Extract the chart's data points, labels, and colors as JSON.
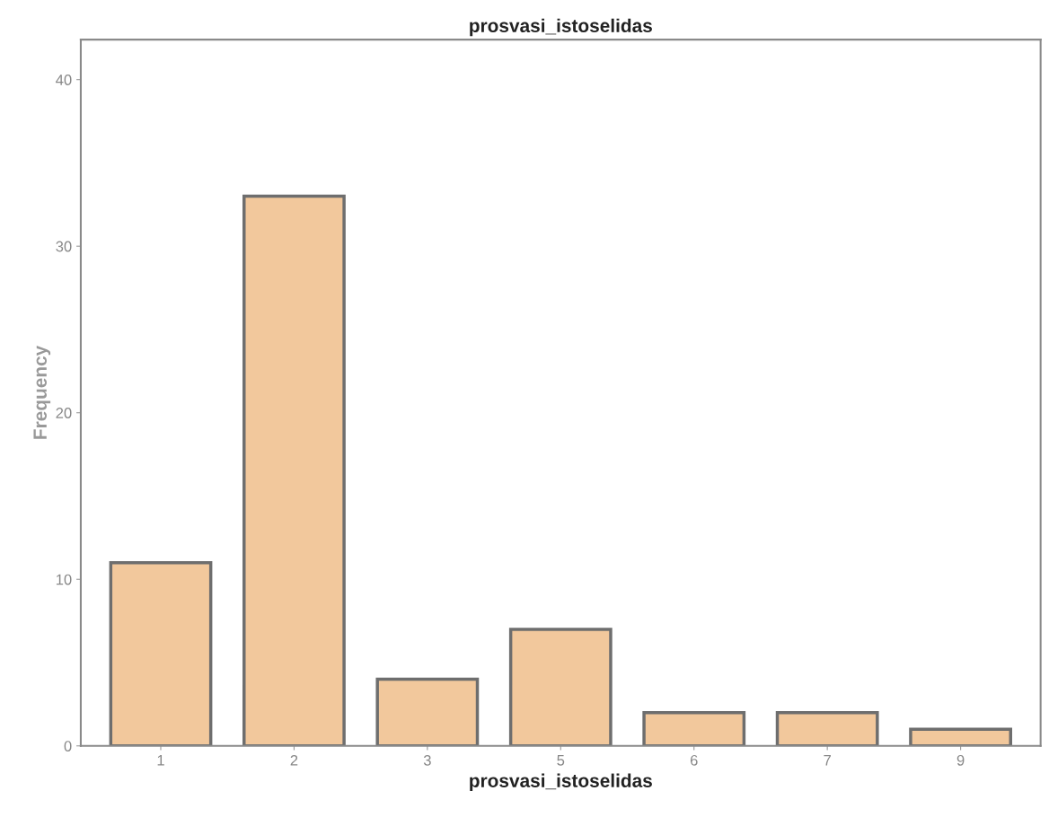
{
  "chart_data": {
    "type": "bar",
    "title": "prosvasi_istoselidas",
    "xlabel": "prosvasi_istoselidas",
    "ylabel": "Frequency",
    "categories": [
      "1",
      "2",
      "3",
      "5",
      "6",
      "7",
      "9"
    ],
    "values": [
      11,
      33,
      4,
      7,
      2,
      2,
      1
    ],
    "color": "#f2c89c",
    "ylim": [
      0,
      42.4
    ],
    "yticks": [
      0,
      10,
      20,
      30,
      40
    ],
    "grid": false,
    "legend": false
  }
}
